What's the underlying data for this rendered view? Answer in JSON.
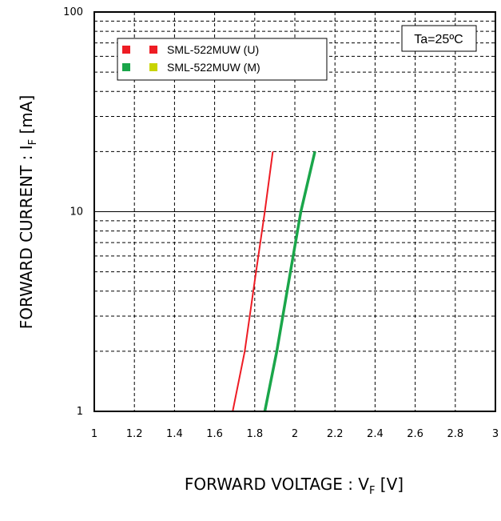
{
  "chart_data": {
    "type": "line",
    "x_scale": "linear",
    "y_scale": "log",
    "xlim": [
      1,
      3
    ],
    "ylim": [
      1,
      100
    ],
    "x_ticks": [
      "1",
      "1.2",
      "1.4",
      "1.6",
      "1.8",
      "2",
      "2.2",
      "2.4",
      "2.6",
      "2.8",
      "3"
    ],
    "y_ticks": [
      "1",
      "10",
      "100"
    ],
    "xlabel": {
      "main": "FORWARD VOLTAGE : V",
      "sub": "F",
      "unit": " [V]"
    },
    "ylabel": {
      "main": "FORWARD CURRENT : I",
      "sub": "F",
      "unit": " [mA]"
    },
    "annotation": "Ta=25ºC",
    "legend_position": "top-left",
    "grid": true,
    "series": [
      {
        "name": "SML-522MUW (U)",
        "color": "#ee1c24",
        "marker_colors": [
          "#ee1c24",
          "#ee1c24"
        ],
        "points": [
          [
            1.69,
            1
          ],
          [
            1.75,
            2
          ],
          [
            1.8,
            4.5
          ],
          [
            1.85,
            10
          ],
          [
            1.89,
            20
          ]
        ]
      },
      {
        "name": "SML-522MUW (M)",
        "color": "#1aa64a",
        "marker_colors": [
          "#1aa64a",
          "#c8d400"
        ],
        "points": [
          [
            1.85,
            1
          ],
          [
            1.91,
            2
          ],
          [
            1.97,
            4.5
          ],
          [
            2.03,
            10
          ],
          [
            2.1,
            20
          ]
        ]
      }
    ]
  }
}
